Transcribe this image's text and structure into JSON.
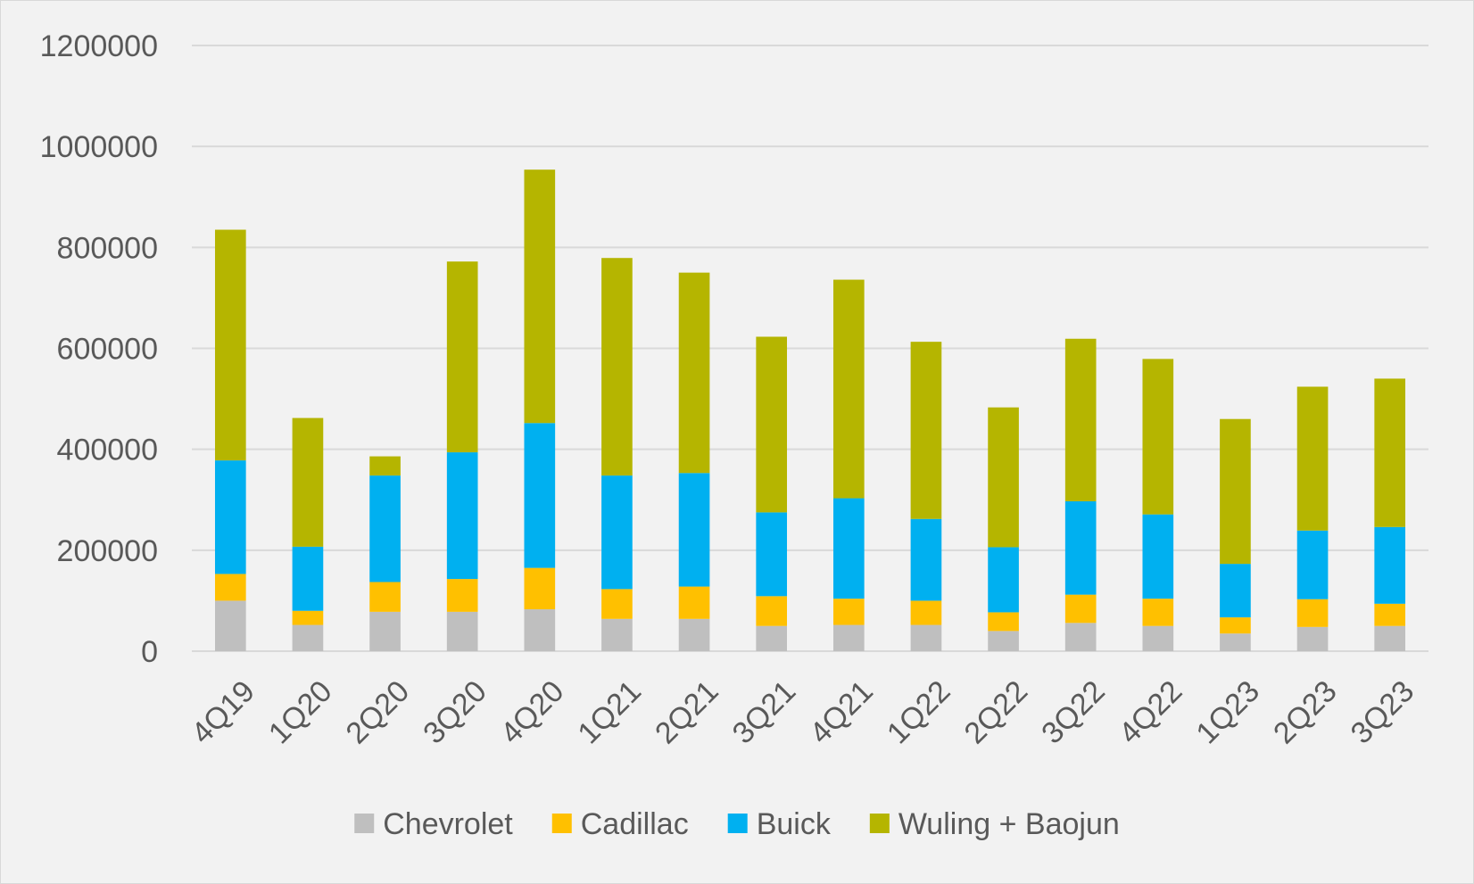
{
  "chart_data": {
    "type": "bar",
    "stacked": true,
    "title": "",
    "xlabel": "",
    "ylabel": "",
    "ylim": [
      0,
      1200000
    ],
    "yticks": [
      0,
      200000,
      400000,
      600000,
      800000,
      1000000,
      1200000
    ],
    "grid": true,
    "legend_position": "bottom",
    "categories": [
      "4Q19",
      "1Q20",
      "2Q20",
      "3Q20",
      "4Q20",
      "1Q21",
      "2Q21",
      "3Q21",
      "4Q21",
      "1Q22",
      "2Q22",
      "3Q22",
      "4Q22",
      "1Q23",
      "2Q23",
      "3Q23"
    ],
    "series": [
      {
        "name": "Chevrolet",
        "color": "#bfbfbf",
        "values": [
          100000,
          52000,
          78000,
          78000,
          83000,
          64000,
          64000,
          50000,
          52000,
          52000,
          40000,
          56000,
          50000,
          35000,
          48000,
          50000
        ]
      },
      {
        "name": "Cadillac",
        "color": "#ffc000",
        "values": [
          53000,
          28000,
          59000,
          65000,
          82000,
          59000,
          64000,
          59000,
          52000,
          48000,
          37000,
          56000,
          54000,
          32000,
          55000,
          44000
        ]
      },
      {
        "name": "Buick",
        "color": "#00b0f0",
        "values": [
          225000,
          127000,
          211000,
          251000,
          287000,
          225000,
          225000,
          166000,
          199000,
          162000,
          129000,
          185000,
          167000,
          106000,
          136000,
          152000
        ]
      },
      {
        "name": "Wuling + Baojun",
        "color": "#b5b500",
        "values": [
          457000,
          255000,
          38000,
          378000,
          502000,
          431000,
          397000,
          348000,
          433000,
          351000,
          277000,
          322000,
          308000,
          287000,
          285000,
          294000
        ]
      }
    ]
  }
}
